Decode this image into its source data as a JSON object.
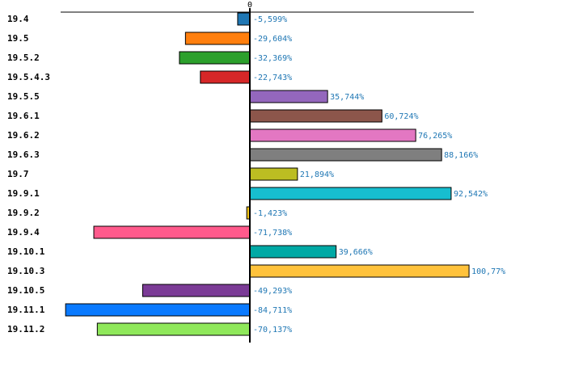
{
  "chart_data": {
    "type": "bar",
    "orientation": "horizontal",
    "title": "",
    "xlabel": "",
    "ylabel": "",
    "axis_tick_label": "0",
    "xlim": [
      -85,
      103
    ],
    "grid": false,
    "legend": "none",
    "categories": [
      "19.4",
      "19.5",
      "19.5.2",
      "19.5.4.3",
      "19.5.5",
      "19.6.1",
      "19.6.2",
      "19.6.3",
      "19.7",
      "19.9.1",
      "19.9.2",
      "19.9.4",
      "19.10.1",
      "19.10.3",
      "19.10.5",
      "19.11.1",
      "19.11.2"
    ],
    "values": [
      -5.599,
      -29.604,
      -32.369,
      -22.743,
      35.744,
      60.724,
      76.265,
      88.166,
      21.894,
      92.542,
      -1.423,
      -71.738,
      39.666,
      100.77,
      -49.293,
      -84.711,
      -70.137
    ],
    "value_labels": [
      "-5,599%",
      "-29,604%",
      "-32,369%",
      "-22,743%",
      "35,744%",
      "60,724%",
      "76,265%",
      "88,166%",
      "21,894%",
      "92,542%",
      "-1,423%",
      "-71,738%",
      "39,666%",
      "100,77%",
      "-49,293%",
      "-84,711%",
      "-70,137%"
    ],
    "colors": [
      "#1f77b4",
      "#ff7f0e",
      "#2ca02c",
      "#d62728",
      "#9467bd",
      "#8c564b",
      "#e377c2",
      "#7f7f7f",
      "#bcbd22",
      "#17becf",
      "#f0c419",
      "#ff5a8c",
      "#00a9a5",
      "#ffc23b",
      "#7b3b96",
      "#0a7aff",
      "#8fe85a"
    ]
  }
}
